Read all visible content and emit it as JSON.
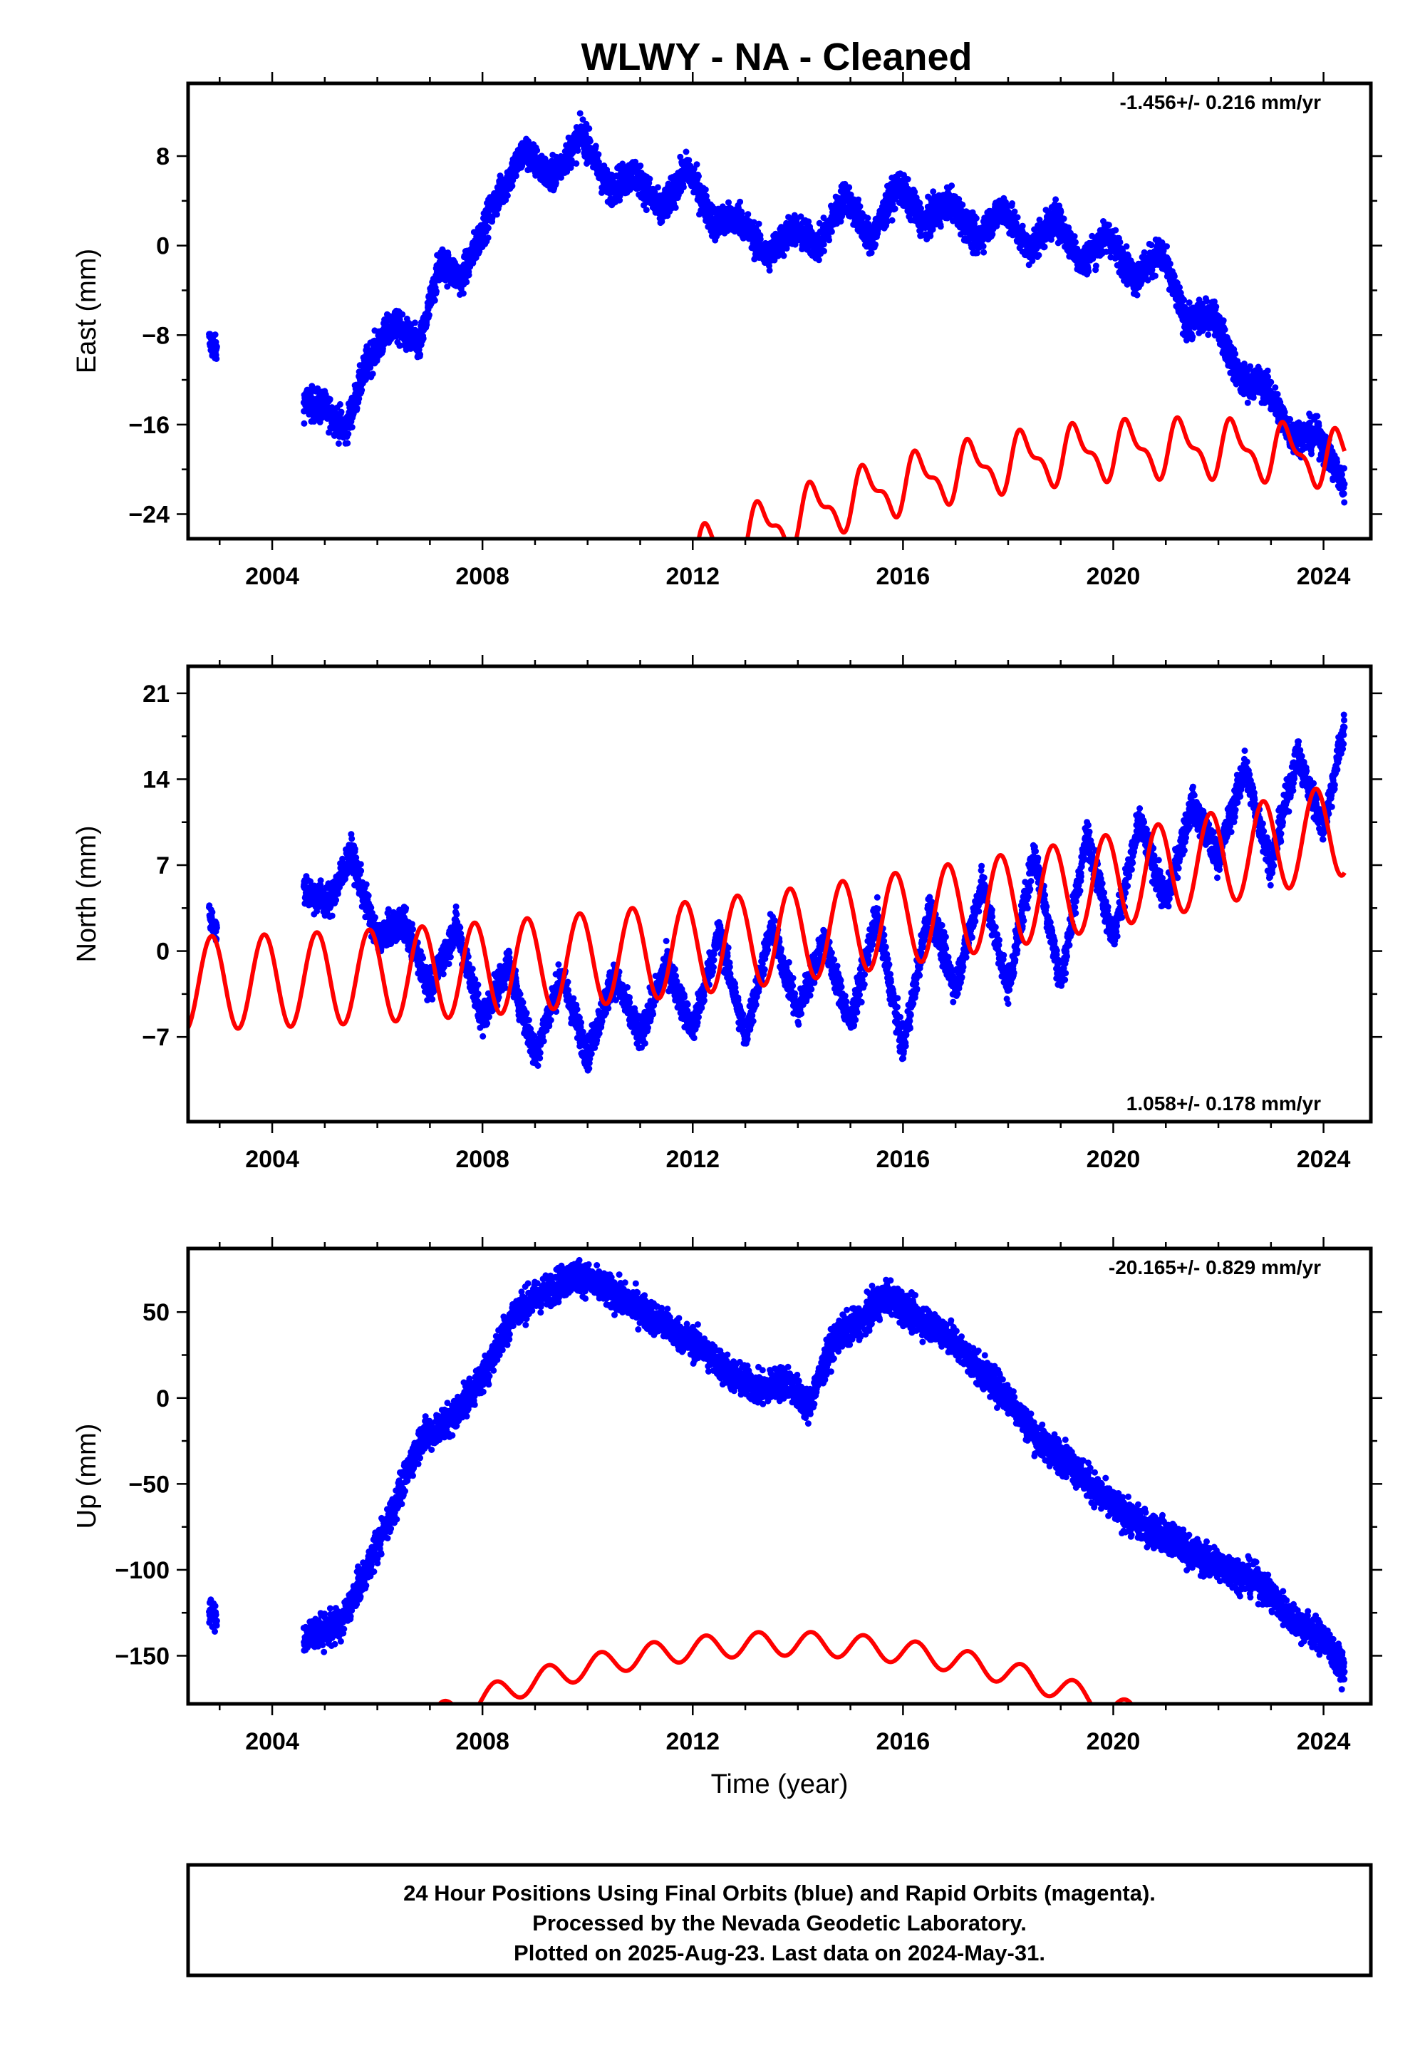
{
  "title": "WLWY  - NA - Cleaned",
  "xlabel": "Time (year)",
  "footer": {
    "lines": [
      "24 Hour Positions Using Final Orbits (blue) and Rapid Orbits (magenta).",
      "Processed by the Nevada Geodetic Laboratory.",
      "Plotted on 2025-Aug-23. Last data on 2024-May-31."
    ]
  },
  "colors": {
    "observations": "#0000ff",
    "model": "#ff0000",
    "frame": "#000000"
  },
  "chart_data": [
    {
      "type": "scatter",
      "ylabel": "East (mm)",
      "rate_text": "-1.456+/- 0.216 mm/yr",
      "rate_position": "top-right",
      "xlim": [
        2002.4,
        2024.9
      ],
      "ylim": [
        -26.2,
        14.5
      ],
      "x_ticks": [
        2004,
        2008,
        2012,
        2016,
        2020,
        2024
      ],
      "y_ticks": [
        -24,
        -16,
        -8,
        0,
        8
      ],
      "observations_anchors": {
        "x": [
          2002.8,
          2002.95,
          2004.6,
          2005.0,
          2005.4,
          2005.8,
          2006.3,
          2006.8,
          2007.2,
          2007.6,
          2008.2,
          2008.8,
          2009.3,
          2009.9,
          2010.4,
          2010.9,
          2011.4,
          2011.9,
          2012.4,
          2012.9,
          2013.4,
          2013.9,
          2014.4,
          2014.9,
          2015.4,
          2015.9,
          2016.4,
          2016.9,
          2017.4,
          2017.9,
          2018.4,
          2018.9,
          2019.4,
          2019.9,
          2020.4,
          2020.9,
          2021.4,
          2021.9,
          2022.4,
          2022.9,
          2023.4,
          2023.9,
          2024.4
        ],
        "y": [
          -8.5,
          -9.5,
          -14.0,
          -14.5,
          -16.5,
          -10.5,
          -7.0,
          -9.0,
          -1.5,
          -3.0,
          3.5,
          8.5,
          6.0,
          10.0,
          5.0,
          6.5,
          3.0,
          7.0,
          2.0,
          2.5,
          -1.0,
          1.5,
          0.0,
          4.5,
          0.5,
          5.5,
          2.0,
          4.0,
          0.5,
          3.5,
          -0.5,
          2.5,
          -1.5,
          1.0,
          -3.0,
          -0.5,
          -7.0,
          -6.0,
          -12.0,
          -12.5,
          -17.0,
          -17.0,
          -21.5
        ]
      },
      "model_terms": {
        "t0": 2024.4,
        "c0": -19.2,
        "c1": -0.7,
        "c2": -0.114,
        "annual_amp": 2.2,
        "annual_phase_year": 0.05,
        "semiannual_amp": 1.0,
        "offsets": [
          {
            "year": 2008.05,
            "mm": 3.3
          }
        ]
      },
      "model_range": [
        2002.4,
        2024.4
      ]
    },
    {
      "type": "scatter",
      "ylabel": "North (mm)",
      "rate_text": "1.058+/- 0.178 mm/yr",
      "rate_position": "bottom-right",
      "xlim": [
        2002.4,
        2024.9
      ],
      "ylim": [
        -13.9,
        23.2
      ],
      "x_ticks": [
        2004,
        2008,
        2012,
        2016,
        2020,
        2024
      ],
      "y_ticks": [
        -7,
        0,
        7,
        14,
        21
      ],
      "observations_anchors": {
        "x": [
          2002.8,
          2002.95,
          2004.6,
          2005.1,
          2005.5,
          2006.0,
          2006.5,
          2007.0,
          2007.5,
          2008.0,
          2008.5,
          2009.0,
          2009.5,
          2010.0,
          2010.5,
          2011.0,
          2011.5,
          2012.0,
          2012.5,
          2013.0,
          2013.5,
          2014.0,
          2014.5,
          2015.0,
          2015.5,
          2016.0,
          2016.5,
          2017.0,
          2017.5,
          2018.0,
          2018.5,
          2019.0,
          2019.5,
          2020.0,
          2020.5,
          2021.0,
          2021.5,
          2022.0,
          2022.5,
          2023.0,
          2023.5,
          2024.0,
          2024.4
        ],
        "y": [
          3.0,
          1.5,
          5.0,
          4.0,
          8.0,
          1.0,
          2.5,
          -3.0,
          2.0,
          -5.5,
          -1.0,
          -8.5,
          -2.0,
          -8.5,
          -2.0,
          -7.0,
          -1.0,
          -6.5,
          1.5,
          -7.0,
          2.0,
          -5.0,
          1.0,
          -6.0,
          3.0,
          -8.0,
          3.5,
          -3.0,
          5.5,
          -3.0,
          8.0,
          -2.5,
          9.5,
          1.0,
          10.5,
          4.0,
          12.0,
          7.5,
          15.0,
          7.0,
          16.0,
          10.0,
          18.5
        ]
      },
      "model_terms": {
        "t0": 2024.4,
        "c0": 10.0,
        "c1": 1.058,
        "c2": 0.022,
        "annual_amp": 3.8,
        "annual_phase_year": 0.6,
        "semiannual_amp": 0.0,
        "offsets": []
      },
      "model_range": [
        2002.4,
        2024.4
      ]
    },
    {
      "type": "scatter",
      "ylabel": "Up (mm)",
      "rate_text": "-20.165+/- 0.829 mm/yr",
      "rate_position": "top-right",
      "xlim": [
        2002.4,
        2024.9
      ],
      "ylim": [
        -178,
        87
      ],
      "x_ticks": [
        2004,
        2008,
        2012,
        2016,
        2020,
        2024
      ],
      "y_ticks": [
        -150,
        -100,
        -50,
        0,
        50
      ],
      "observations_anchors": {
        "x": [
          2002.8,
          2002.95,
          2004.6,
          2005.3,
          2005.8,
          2006.3,
          2006.8,
          2007.4,
          2008.0,
          2008.6,
          2009.2,
          2009.8,
          2010.4,
          2011.0,
          2011.6,
          2012.2,
          2012.8,
          2013.3,
          2013.8,
          2014.2,
          2014.7,
          2015.2,
          2015.7,
          2016.2,
          2016.8,
          2017.4,
          2018.0,
          2018.6,
          2019.2,
          2019.8,
          2020.4,
          2021.0,
          2021.6,
          2022.2,
          2022.8,
          2023.4,
          2024.0,
          2024.4
        ],
        "y": [
          -125,
          -128,
          -140,
          -132,
          -100,
          -65,
          -25,
          -12,
          12,
          50,
          62,
          72,
          62,
          52,
          40,
          28,
          12,
          5,
          10,
          -5,
          35,
          45,
          60,
          48,
          38,
          18,
          0,
          -25,
          -38,
          -58,
          -72,
          -80,
          -92,
          -100,
          -108,
          -128,
          -140,
          -160
        ]
      },
      "model_terms": {
        "t0": 2024.4,
        "c0": -250,
        "c1": -20.165,
        "c2": -0.95,
        "annual_amp": 7.0,
        "annual_phase_year": 0.0,
        "semiannual_amp": 0.0,
        "offsets": []
      },
      "model_range": [
        2002.4,
        2024.4
      ]
    }
  ]
}
